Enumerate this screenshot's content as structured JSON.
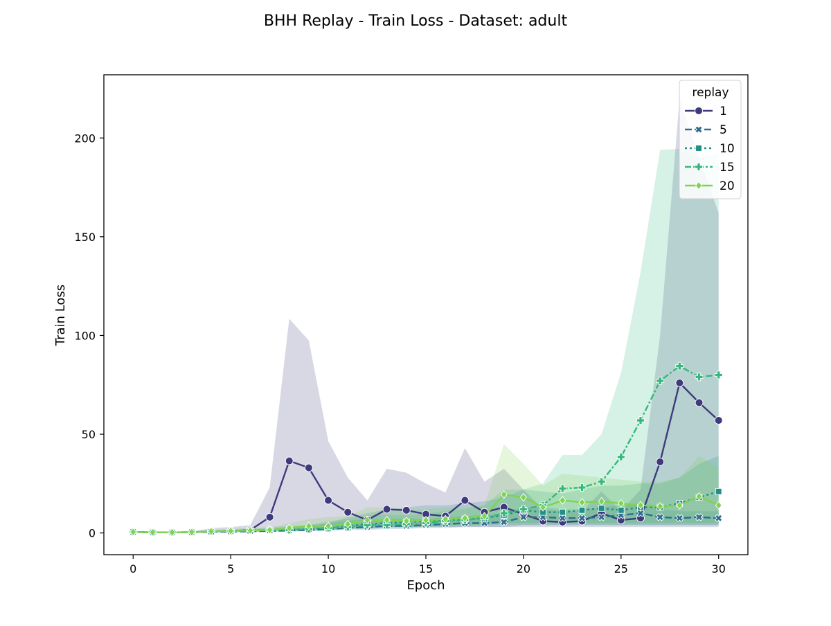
{
  "chart_data": {
    "type": "line",
    "title": "BHH Replay - Train Loss - Dataset: adult",
    "xlabel": "Epoch",
    "ylabel": "Train Loss",
    "xlim": [
      -1.5,
      31.5
    ],
    "ylim": [
      -11,
      232
    ],
    "xticks": [
      0,
      5,
      10,
      15,
      20,
      25,
      30
    ],
    "yticks": [
      0,
      50,
      100,
      150,
      200
    ],
    "grid": false,
    "legend": {
      "title": "replay",
      "placement": "top-right"
    },
    "x": [
      0,
      1,
      2,
      3,
      4,
      5,
      6,
      7,
      8,
      9,
      10,
      11,
      12,
      13,
      14,
      15,
      16,
      17,
      18,
      19,
      20,
      21,
      22,
      23,
      24,
      25,
      26,
      27,
      28,
      29,
      30
    ],
    "series": [
      {
        "name": "1",
        "color": "#3e3a7c",
        "dash": "",
        "marker": "circle",
        "values": [
          0.5,
          0.3,
          0.3,
          0.4,
          0.8,
          1,
          1.5,
          8,
          36.5,
          33,
          16.5,
          10.5,
          6.5,
          12,
          11.5,
          9.5,
          8.5,
          16.5,
          10.5,
          13,
          9.5,
          6,
          5.5,
          6,
          10,
          6.5,
          7.5,
          36,
          76,
          66,
          57
        ],
        "lower": [
          0.3,
          0.2,
          0.2,
          0.3,
          0.5,
          0.7,
          1,
          1,
          2,
          2,
          3,
          3,
          2,
          3,
          3,
          3,
          3,
          3,
          3,
          3,
          3,
          3,
          3,
          3,
          3,
          3,
          3,
          3,
          3,
          3,
          3
        ],
        "upper": [
          0.8,
          0.5,
          0.5,
          0.6,
          2.5,
          3,
          4,
          23,
          108.5,
          97.5,
          46.5,
          28,
          16.5,
          32.5,
          30.5,
          25,
          20.5,
          43,
          26,
          32.5,
          22,
          12,
          11,
          11,
          21,
          11,
          22,
          100,
          220,
          190,
          162
        ]
      },
      {
        "name": "5",
        "color": "#2f6c8e",
        "dash": "10,4",
        "marker": "x",
        "values": [
          0.5,
          0.3,
          0.3,
          0.4,
          0.5,
          0.6,
          0.8,
          1,
          1.2,
          1.5,
          2,
          2.5,
          3,
          3.5,
          3.5,
          4,
          4.5,
          5,
          5,
          5.5,
          8,
          8,
          7.5,
          7.5,
          8,
          9,
          10,
          8,
          7.5,
          8,
          7.5
        ],
        "lower": [
          0.3,
          0.2,
          0.2,
          0.3,
          0.3,
          0.4,
          0.5,
          0.6,
          0.7,
          0.8,
          1,
          1.5,
          1.5,
          2,
          2,
          2.5,
          2.5,
          3,
          3,
          3,
          4,
          4,
          4,
          4,
          4,
          4,
          4,
          4,
          4,
          4,
          4
        ],
        "upper": [
          0.8,
          0.5,
          0.5,
          0.6,
          0.8,
          1,
          1.3,
          1.7,
          2,
          3,
          5,
          6,
          7,
          7,
          7.5,
          7,
          8,
          8.5,
          9,
          10,
          13,
          13,
          12,
          12,
          13,
          14,
          15,
          12,
          11,
          11,
          11
        ]
      },
      {
        "name": "10",
        "color": "#1f8f88",
        "dash": "3,4",
        "marker": "square",
        "values": [
          0.5,
          0.3,
          0.3,
          0.4,
          0.6,
          0.8,
          1,
          1.3,
          1.6,
          2,
          2.5,
          3.5,
          4.5,
          5,
          5.5,
          6,
          6.5,
          7,
          7.5,
          9,
          11.5,
          10.5,
          10.5,
          11.5,
          12.5,
          11.5,
          13,
          13,
          15,
          18,
          21
        ],
        "lower": [
          0.3,
          0.2,
          0.2,
          0.3,
          0.4,
          0.5,
          0.6,
          0.8,
          1,
          1.2,
          1.5,
          2,
          2.5,
          3,
          3,
          3.5,
          4,
          4,
          4,
          5,
          5,
          5,
          5,
          5,
          5,
          5,
          5,
          5,
          5,
          5,
          5
        ],
        "upper": [
          0.8,
          0.5,
          0.5,
          0.6,
          1,
          1.3,
          1.6,
          2.5,
          3,
          4,
          5,
          8,
          10,
          12,
          13,
          14,
          14,
          15,
          16,
          18,
          22,
          21,
          20,
          22,
          24,
          24,
          25,
          25,
          28,
          35,
          39
        ]
      },
      {
        "name": "15",
        "color": "#34b87b",
        "dash": "9,3,3,3",
        "marker": "plus",
        "values": [
          0.5,
          0.3,
          0.3,
          0.4,
          0.8,
          1,
          1.5,
          1.5,
          1.5,
          2,
          2.5,
          3,
          4,
          4,
          4.5,
          5,
          6,
          6.5,
          7.5,
          10,
          12,
          14,
          22.5,
          23,
          26,
          38.5,
          57,
          77,
          84.5,
          79,
          80
        ],
        "lower": [
          0.3,
          0.2,
          0.2,
          0.3,
          0.5,
          0.7,
          1,
          1,
          1,
          1.2,
          1.5,
          2,
          2,
          2.5,
          2.5,
          3,
          3,
          3.5,
          4,
          4,
          4,
          4,
          4,
          4,
          4,
          4,
          4,
          4,
          4,
          4,
          4
        ],
        "upper": [
          0.8,
          0.5,
          0.5,
          0.6,
          1.5,
          2,
          2.5,
          3,
          3.5,
          4,
          6,
          7,
          9,
          9,
          9,
          10,
          11,
          12,
          14,
          22,
          22,
          25,
          39.5,
          39.5,
          50,
          81,
          132,
          194,
          194.5,
          190,
          192
        ]
      },
      {
        "name": "20",
        "color": "#7fd34e",
        "dash": "",
        "marker": "diamond",
        "values": [
          0.5,
          0.3,
          0.3,
          0.4,
          0.8,
          1,
          1.2,
          1.5,
          2.5,
          3.5,
          3.5,
          4.5,
          6.5,
          6.5,
          6,
          6.5,
          7,
          7.5,
          8.5,
          19.5,
          18,
          13,
          16.5,
          15.5,
          16,
          15,
          14,
          13.5,
          14,
          18.5,
          14
        ],
        "lower": [
          0.3,
          0.2,
          0.2,
          0.3,
          0.5,
          0.7,
          0.8,
          1,
          1.5,
          2,
          2,
          2.5,
          3,
          3.5,
          3,
          3.5,
          4,
          4,
          4,
          5,
          5,
          5,
          5,
          5,
          5,
          5,
          5,
          5,
          5,
          5,
          5
        ],
        "upper": [
          0.8,
          0.5,
          0.5,
          0.6,
          1.2,
          1.5,
          2,
          2.5,
          5,
          7,
          8,
          8.5,
          13,
          13,
          12,
          12,
          13,
          13,
          14,
          45,
          35,
          24,
          30,
          29,
          28,
          27,
          26,
          26,
          28,
          39,
          33
        ]
      }
    ]
  }
}
